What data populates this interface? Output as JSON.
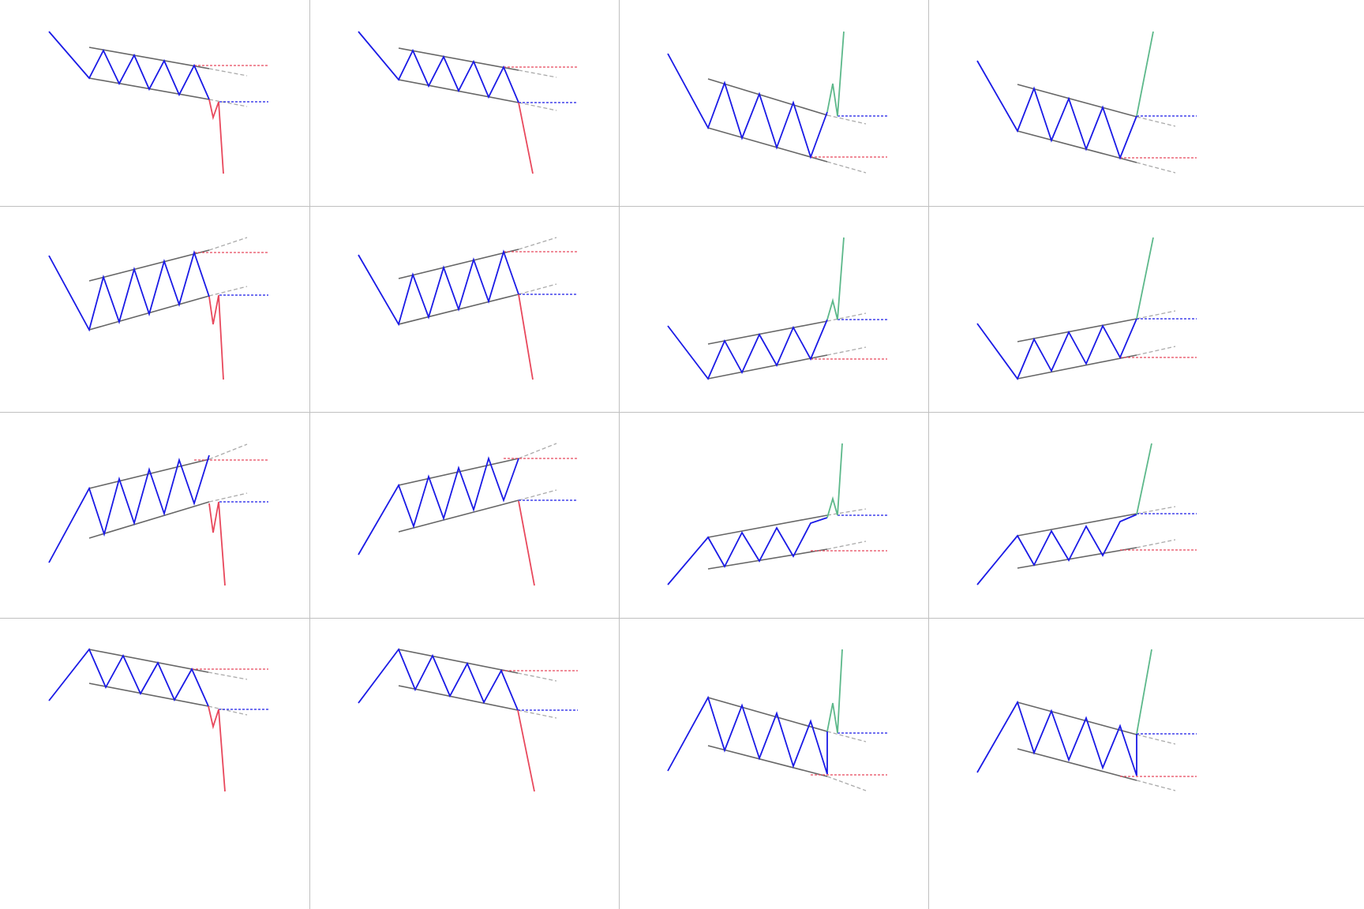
{
  "colors": {
    "background": "#ffffff",
    "gridline": "#c0c0c0",
    "channel": "#666666",
    "extension": "#aaaaaa",
    "price": "#1a1ae6",
    "breakout_down": "#e8485c",
    "breakout_up": "#5cb88a",
    "level_red": "#e8485c",
    "level_blue": "#1a1ae6"
  },
  "chart_data": [
    {
      "name": "falling-channel-with-retest-bearish-breakout",
      "type": "diagram"
    },
    {
      "name": "falling-channel-bearish-breakout",
      "type": "diagram"
    },
    {
      "name": "falling-channel-with-retest-bullish-breakout",
      "type": "diagram"
    },
    {
      "name": "falling-channel-bullish-breakout",
      "type": "diagram"
    },
    {
      "name": "rising-channel-after-downtrend-with-retest-bearish-breakout",
      "type": "diagram"
    },
    {
      "name": "rising-channel-after-downtrend-bearish-breakout",
      "type": "diagram"
    },
    {
      "name": "rising-channel-after-downtrend-with-retest-bullish-breakout",
      "type": "diagram"
    },
    {
      "name": "rising-channel-after-downtrend-bullish-breakout",
      "type": "diagram"
    },
    {
      "name": "rising-channel-after-uptrend-with-retest-bearish-breakout",
      "type": "diagram"
    },
    {
      "name": "rising-channel-after-uptrend-bearish-breakout",
      "type": "diagram"
    },
    {
      "name": "rising-channel-after-uptrend-with-retest-bullish-breakout",
      "type": "diagram"
    },
    {
      "name": "rising-channel-after-uptrend-bullish-breakout",
      "type": "diagram"
    },
    {
      "name": "falling-channel-after-uptrend-with-retest-bearish-breakout",
      "type": "diagram"
    },
    {
      "name": "falling-channel-after-uptrend-bearish-breakout",
      "type": "diagram"
    },
    {
      "name": "falling-channel-after-uptrend-with-retest-bullish-breakout",
      "type": "diagram"
    },
    {
      "name": "falling-channel-after-uptrend-bullish-breakout",
      "type": "diagram"
    }
  ]
}
